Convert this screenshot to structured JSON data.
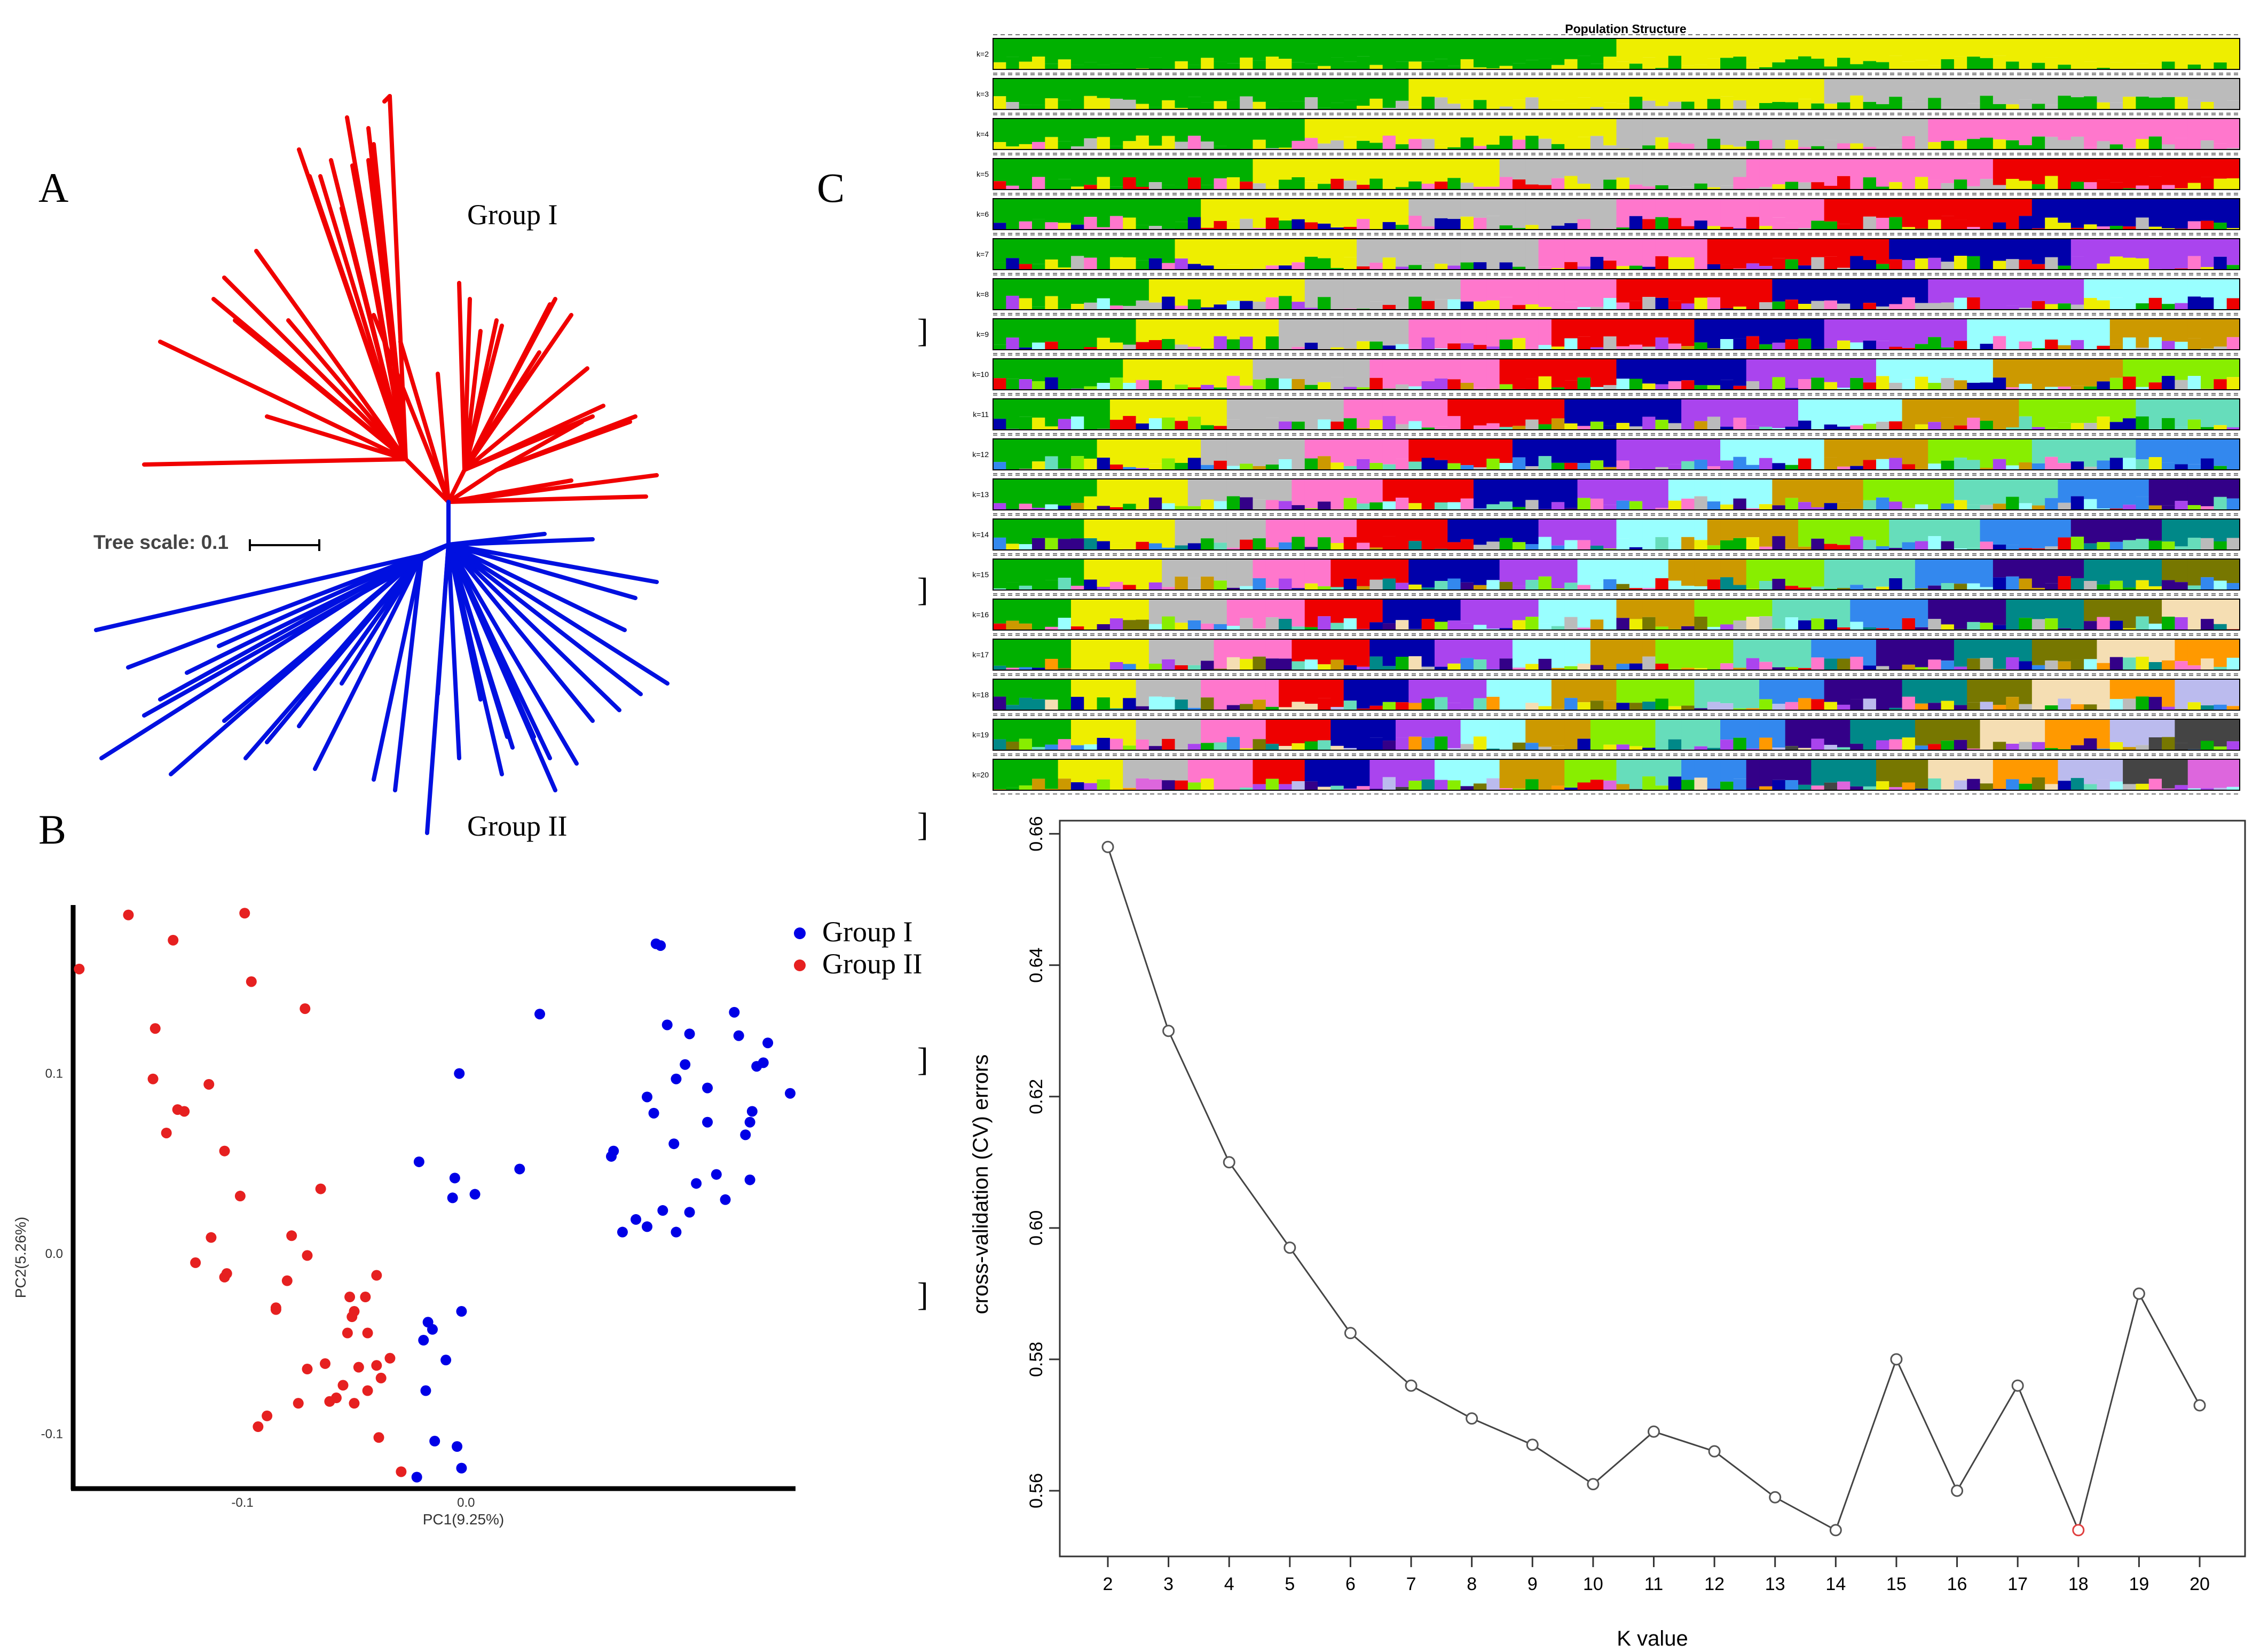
{
  "panel_labels": {
    "a": "A",
    "b": "B",
    "c": "C"
  },
  "colors": {
    "group1": "#0000e6",
    "group2": "#e62020",
    "tree_red": "#f00000",
    "tree_blue": "#0010e0",
    "cv_line": "#444444",
    "cv_min": "#e04040"
  },
  "tree": {
    "group1_label": "Group I",
    "group2_label": "Group II",
    "scale_label": "Tree scale: 0.1"
  },
  "structure_colors": [
    "#00b000",
    "#eeee00",
    "#bbbbbb",
    "#ff77cc",
    "#ee0000",
    "#0000aa",
    "#aa44ee",
    "#99ffff",
    "#cc9900",
    "#88ee00",
    "#66ddbb",
    "#3388ee",
    "#330088",
    "#008888",
    "#777700",
    "#f5deb3",
    "#ff9900",
    "#bbbbee",
    "#444444",
    "#dd66dd"
  ],
  "chart_data": [
    {
      "type": "scatter",
      "title": "",
      "xlabel": "PC1(9.25%)",
      "ylabel": "PC2(5.26%)",
      "xticks": [
        "-0.1",
        "0.0"
      ],
      "yticks": [
        "-0.1",
        "0.0",
        "0.1"
      ],
      "xlim": [
        -0.175,
        0.145
      ],
      "ylim": [
        -0.128,
        0.195
      ],
      "legend": [
        "Group I",
        "Group II"
      ],
      "series": [
        {
          "name": "Group I",
          "points": [
            [
              0.085,
              0.172
            ],
            [
              0.087,
              0.171
            ],
            [
              0.033,
              0.133
            ],
            [
              0.09,
              0.127
            ],
            [
              0.12,
              0.134
            ],
            [
              0.122,
              0.121
            ],
            [
              0.135,
              0.117
            ],
            [
              0.133,
              0.106
            ],
            [
              0.145,
              0.089
            ],
            [
              0.13,
              0.104
            ],
            [
              0.1,
              0.122
            ],
            [
              0.098,
              0.105
            ],
            [
              0.094,
              0.097
            ],
            [
              0.081,
              0.087
            ],
            [
              0.108,
              0.092
            ],
            [
              0.127,
              0.073
            ],
            [
              0.128,
              0.079
            ],
            [
              0.125,
              0.066
            ],
            [
              0.108,
              0.073
            ],
            [
              0.093,
              0.061
            ],
            [
              0.084,
              0.078
            ],
            [
              0.066,
              0.057
            ],
            [
              0.065,
              0.054
            ],
            [
              0.112,
              0.044
            ],
            [
              0.127,
              0.041
            ],
            [
              0.116,
              0.03
            ],
            [
              0.103,
              0.039
            ],
            [
              0.1,
              0.023
            ],
            [
              0.088,
              0.024
            ],
            [
              0.081,
              0.015
            ],
            [
              0.076,
              0.019
            ],
            [
              0.07,
              0.012
            ],
            [
              0.094,
              0.012
            ],
            [
              -0.003,
              0.1
            ],
            [
              -0.021,
              0.051
            ],
            [
              -0.005,
              0.042
            ],
            [
              0.004,
              0.033
            ],
            [
              -0.006,
              0.031
            ],
            [
              0.024,
              0.047
            ],
            [
              -0.002,
              -0.032
            ],
            [
              -0.017,
              -0.038
            ],
            [
              -0.019,
              -0.048
            ],
            [
              -0.009,
              -0.059
            ],
            [
              -0.018,
              -0.076
            ],
            [
              -0.014,
              -0.104
            ],
            [
              -0.004,
              -0.107
            ],
            [
              -0.002,
              -0.119
            ],
            [
              -0.022,
              -0.124
            ],
            [
              -0.015,
              -0.042
            ]
          ]
        },
        {
          "name": "Group II",
          "points": [
            [
              -0.173,
              0.158
            ],
            [
              -0.151,
              0.188
            ],
            [
              -0.139,
              0.125
            ],
            [
              -0.131,
              0.174
            ],
            [
              -0.099,
              0.189
            ],
            [
              -0.096,
              0.151
            ],
            [
              -0.072,
              0.136
            ],
            [
              -0.14,
              0.097
            ],
            [
              -0.129,
              0.08
            ],
            [
              -0.126,
              0.079
            ],
            [
              -0.134,
              0.067
            ],
            [
              -0.115,
              0.094
            ],
            [
              -0.108,
              0.057
            ],
            [
              -0.101,
              0.032
            ],
            [
              -0.065,
              0.036
            ],
            [
              -0.114,
              0.009
            ],
            [
              -0.121,
              -0.005
            ],
            [
              -0.107,
              -0.011
            ],
            [
              -0.108,
              -0.013
            ],
            [
              -0.078,
              0.01
            ],
            [
              -0.071,
              -0.001
            ],
            [
              -0.08,
              -0.015
            ],
            [
              -0.085,
              -0.03
            ],
            [
              -0.085,
              -0.031
            ],
            [
              -0.04,
              -0.012
            ],
            [
              -0.045,
              -0.024
            ],
            [
              -0.052,
              -0.024
            ],
            [
              -0.05,
              -0.032
            ],
            [
              -0.051,
              -0.035
            ],
            [
              -0.044,
              -0.044
            ],
            [
              -0.053,
              -0.044
            ],
            [
              -0.034,
              -0.058
            ],
            [
              -0.04,
              -0.062
            ],
            [
              -0.048,
              -0.063
            ],
            [
              -0.063,
              -0.061
            ],
            [
              -0.071,
              -0.064
            ],
            [
              -0.055,
              -0.073
            ],
            [
              -0.038,
              -0.069
            ],
            [
              -0.044,
              -0.076
            ],
            [
              -0.058,
              -0.08
            ],
            [
              -0.061,
              -0.082
            ],
            [
              -0.075,
              -0.083
            ],
            [
              -0.05,
              -0.083
            ],
            [
              -0.089,
              -0.09
            ],
            [
              -0.093,
              -0.096
            ],
            [
              -0.039,
              -0.102
            ],
            [
              -0.029,
              -0.121
            ]
          ]
        }
      ]
    },
    {
      "type": "line",
      "title": "",
      "xlabel": "K value",
      "ylabel": "cross-validation (CV) errors",
      "x": [
        2,
        3,
        4,
        5,
        6,
        7,
        8,
        9,
        10,
        11,
        12,
        13,
        14,
        15,
        16,
        17,
        18,
        19,
        20
      ],
      "values": [
        0.658,
        0.63,
        0.61,
        0.597,
        0.584,
        0.576,
        0.571,
        0.567,
        0.561,
        0.569,
        0.566,
        0.559,
        0.554,
        0.58,
        0.56,
        0.576,
        0.554,
        0.59,
        0.573
      ],
      "ylim": [
        0.55,
        0.662
      ],
      "yticks": [
        "0.56",
        "0.58",
        "0.60",
        "0.62",
        "0.64",
        "0.66"
      ],
      "highlight_x": 18
    },
    {
      "type": "bar",
      "title": "Population Structure",
      "subtype": "stacked admixture proportions",
      "rows": [
        "k=2",
        "k=3",
        "k=4",
        "k=5",
        "k=6",
        "k=7",
        "k=8",
        "k=9",
        "k=10",
        "k=11",
        "k=12",
        "k=13",
        "k=14",
        "k=15",
        "k=16",
        "k=17",
        "k=18",
        "k=19",
        "k=20"
      ],
      "samples": 96
    }
  ]
}
